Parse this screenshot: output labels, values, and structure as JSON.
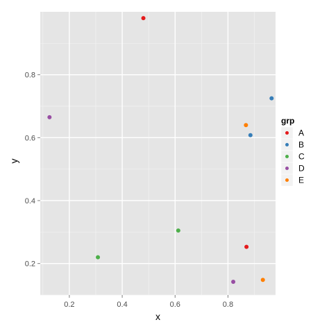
{
  "chart_data": {
    "type": "scatter",
    "title": "",
    "xlabel": "x",
    "ylabel": "y",
    "xlim": [
      0.09,
      0.98
    ],
    "ylim": [
      0.1,
      1.0
    ],
    "x_ticks": [
      0.2,
      0.4,
      0.6,
      0.8
    ],
    "y_ticks": [
      0.2,
      0.4,
      0.6,
      0.8
    ],
    "x_tick_labels": [
      "0.2",
      "0.4",
      "0.6",
      "0.8"
    ],
    "y_tick_labels": [
      "0.2",
      "0.4",
      "0.6",
      "0.8"
    ],
    "grid": true,
    "legend": {
      "title": "grp",
      "position": "right"
    },
    "series": [
      {
        "name": "A",
        "color": "#E41A1C",
        "points": [
          {
            "x": 0.48,
            "y": 0.98
          },
          {
            "x": 0.87,
            "y": 0.253
          }
        ]
      },
      {
        "name": "B",
        "color": "#377EB8",
        "points": [
          {
            "x": 0.965,
            "y": 0.725
          },
          {
            "x": 0.885,
            "y": 0.608
          }
        ]
      },
      {
        "name": "C",
        "color": "#4DAF4A",
        "points": [
          {
            "x": 0.612,
            "y": 0.305
          },
          {
            "x": 0.308,
            "y": 0.22
          }
        ]
      },
      {
        "name": "D",
        "color": "#984EA3",
        "points": [
          {
            "x": 0.125,
            "y": 0.665
          },
          {
            "x": 0.82,
            "y": 0.142
          }
        ]
      },
      {
        "name": "E",
        "color": "#FF7F00",
        "points": [
          {
            "x": 0.868,
            "y": 0.64
          },
          {
            "x": 0.932,
            "y": 0.148
          }
        ]
      }
    ]
  }
}
